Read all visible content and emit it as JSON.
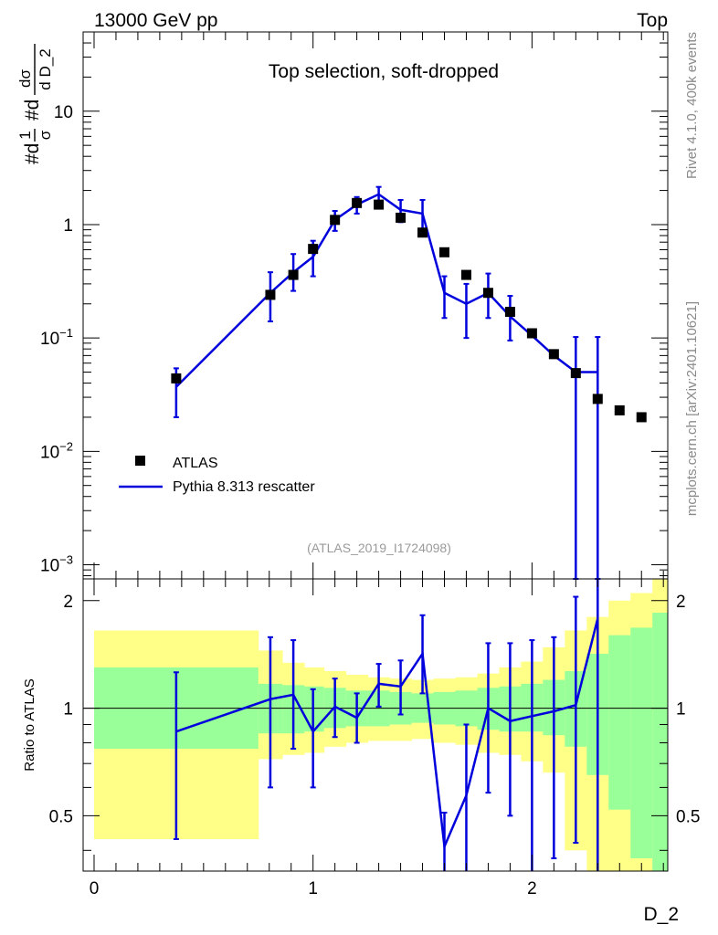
{
  "header": {
    "left": "13000 GeV pp",
    "right": "Top"
  },
  "side_labels": {
    "rivet": "Rivet 4.1.0,  400k events",
    "mcplots": "mcplots.cern.ch [arXiv:2401.10621]"
  },
  "colors": {
    "mc": "#0000dd",
    "data": "#000000",
    "band_green": "#99ff99",
    "band_yellow": "#ffff88"
  },
  "chart_data": [
    {
      "type": "scatter",
      "title": "Top selection, soft-dropped",
      "analysis": "(ATLAS_2019_I1724098)",
      "ylabel": "#d1/σ #dd σ/d D_2",
      "ylabel_parts": {
        "hash1": "#d",
        "frac1_num": "1",
        "frac1_den": "σ",
        "hash2": "#d",
        "frac2_num": "dσ",
        "frac2_den": "d D_2"
      },
      "yscale": "log",
      "ylim": [
        0.00075,
        50
      ],
      "xlim": [
        -0.05,
        2.62
      ],
      "y_ticks": [
        {
          "v": 0.001,
          "base": "10",
          "exp": "−3"
        },
        {
          "v": 0.01,
          "base": "10",
          "exp": "−2"
        },
        {
          "v": 0.1,
          "base": "10",
          "exp": "−1"
        },
        {
          "v": 1,
          "base": "1",
          "exp": ""
        },
        {
          "v": 10,
          "base": "10",
          "exp": ""
        }
      ],
      "legend": {
        "position": "bottom-left",
        "entries": [
          {
            "label": "ATLAS",
            "style": "marker"
          },
          {
            "label": "Pythia 8.313 rescatter",
            "style": "line"
          }
        ]
      },
      "series": [
        {
          "name": "ATLAS",
          "x": [
            0.375,
            0.805,
            0.91,
            1.0,
            1.1,
            1.2,
            1.3,
            1.4,
            1.5,
            1.6,
            1.7,
            1.8,
            1.9,
            2.0,
            2.1,
            2.2,
            2.3,
            2.4,
            2.5
          ],
          "y": [
            0.044,
            0.24,
            0.36,
            0.61,
            1.1,
            1.55,
            1.5,
            1.15,
            0.85,
            0.57,
            0.36,
            0.25,
            0.17,
            0.11,
            0.072,
            0.049,
            0.029,
            0.023,
            0.02
          ]
        },
        {
          "name": "Pythia 8.313 rescatter",
          "x": [
            0.375,
            0.805,
            0.91,
            1.0,
            1.1,
            1.2,
            1.3,
            1.4,
            1.5,
            1.6,
            1.7,
            1.8,
            1.9,
            2.0,
            2.1,
            2.2,
            2.3
          ],
          "y": [
            0.037,
            0.25,
            0.38,
            0.52,
            1.1,
            1.5,
            1.85,
            1.35,
            1.25,
            0.25,
            0.2,
            0.25,
            0.155,
            0.105,
            0.07,
            0.05,
            0.05
          ],
          "err_low": [
            0.017,
            0.11,
            0.12,
            0.17,
            0.22,
            0.25,
            0.3,
            0.3,
            0.4,
            0.1,
            0.1,
            0.1,
            0.06,
            0,
            0,
            0.0499,
            0.0499
          ],
          "err_high": [
            0.017,
            0.13,
            0.17,
            0.2,
            0.22,
            0.25,
            0.3,
            0.3,
            0.4,
            0.1,
            0.1,
            0.12,
            0.08,
            0,
            0,
            0.052,
            0.052
          ]
        }
      ]
    },
    {
      "type": "line",
      "ylabel": "Ratio to ATLAS",
      "xlabel": "D_2",
      "ylim": [
        0.35,
        2.3
      ],
      "xlim": [
        -0.05,
        2.62
      ],
      "x_ticks": [
        0,
        1,
        2
      ],
      "y_ticks": [
        0.5,
        1,
        2
      ],
      "reference": 1,
      "bands": {
        "edges": [
          0,
          0.75,
          0.86,
          0.96,
          1.05,
          1.15,
          1.25,
          1.35,
          1.45,
          1.55,
          1.65,
          1.75,
          1.85,
          1.95,
          2.05,
          2.15,
          2.25,
          2.35,
          2.45,
          2.55,
          2.65
        ],
        "green_low": [
          0.77,
          0.85,
          0.85,
          0.86,
          0.88,
          0.89,
          0.89,
          0.9,
          0.91,
          0.9,
          0.89,
          0.87,
          0.86,
          0.86,
          0.84,
          0.78,
          0.65,
          0.52,
          0.38,
          0.35
        ],
        "green_high": [
          1.3,
          1.17,
          1.16,
          1.15,
          1.14,
          1.12,
          1.12,
          1.11,
          1.1,
          1.11,
          1.12,
          1.14,
          1.15,
          1.17,
          1.2,
          1.27,
          1.42,
          1.6,
          1.68,
          1.85
        ],
        "yellow_low": [
          0.43,
          0.72,
          0.74,
          0.75,
          0.78,
          0.8,
          0.81,
          0.81,
          0.82,
          0.8,
          0.79,
          0.75,
          0.74,
          0.71,
          0.66,
          0.4,
          0.35,
          0.35,
          0.35,
          0.35
        ],
        "yellow_high": [
          1.65,
          1.45,
          1.34,
          1.3,
          1.27,
          1.24,
          1.22,
          1.21,
          1.2,
          1.21,
          1.22,
          1.25,
          1.3,
          1.35,
          1.48,
          1.65,
          1.8,
          2.0,
          2.1,
          2.3
        ]
      },
      "series": [
        {
          "name": "Pythia 8.313 rescatter / ATLAS",
          "x": [
            0.375,
            0.805,
            0.91,
            1.0,
            1.1,
            1.2,
            1.3,
            1.4,
            1.5,
            1.6,
            1.7,
            1.8,
            1.9,
            2.0,
            2.1,
            2.2,
            2.3
          ],
          "y": [
            0.86,
            1.06,
            1.09,
            0.86,
            1.01,
            0.94,
            1.17,
            1.15,
            1.42,
            0.41,
            0.57,
            1.0,
            0.92,
            0.95,
            0.98,
            1.02,
            1.78
          ],
          "err_low": [
            0.43,
            0.46,
            0.32,
            0.26,
            0.18,
            0.14,
            0.16,
            0.19,
            0.32,
            0.08,
            0.25,
            0.42,
            0.42,
            0.6,
            0.6,
            0.6,
            1.5
          ],
          "err_high": [
            0.4,
            0.52,
            0.46,
            0.27,
            0.2,
            0.16,
            0.16,
            0.21,
            0.4,
            0.1,
            0.33,
            0.52,
            0.6,
            0.6,
            0.6,
            1.03,
            1.0
          ]
        }
      ]
    }
  ]
}
